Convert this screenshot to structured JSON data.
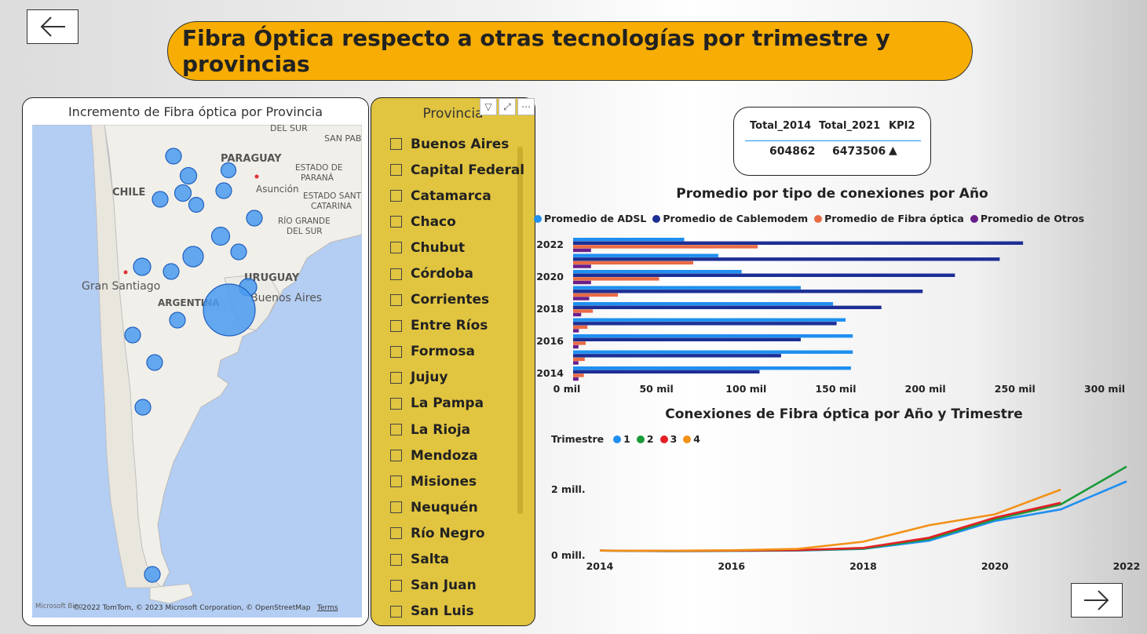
{
  "page": {
    "title": "Fibra Óptica respecto a otras tecnologías por trimestre y provincias",
    "back_icon": "arrow-left-icon",
    "next_icon": "arrow-right-icon"
  },
  "map": {
    "title": "Incremento de Fibra óptica por Provincia",
    "labels": {
      "del_sur_top": "DEL SUR",
      "san_pablo": "SAN PABL",
      "paraguay": "PARAGUAY",
      "estado_de_parana_1": "ESTADO DE",
      "estado_de_parana_2": "PARANÁ",
      "chile": "CHILE",
      "asuncion": "Asunción",
      "estado_santa_catarina_1": "ESTADO SANT",
      "estado_santa_catarina_2": "CATARINA",
      "rio_grande_1": "RÍO GRANDE",
      "rio_grande_2": "DEL SUR",
      "uruguay": "URUGUAY",
      "gran_santiago": "Gran Santiago",
      "buenos_aires": "Buenos Aires",
      "argentina": "ARGENTINA"
    },
    "attribution": "© 2022 TomTom, © 2023 Microsoft Corporation, © OpenStreetMap",
    "terms": "Terms",
    "logo": "Microsoft Bing",
    "bubble_color": "#4a9bf0"
  },
  "slicer": {
    "title": "Provincia",
    "filter_icon": "filter-icon",
    "focus_icon": "focus-mode-icon",
    "more_icon": "more-options-icon",
    "items": [
      "Buenos Aires",
      "Capital Federal",
      "Catamarca",
      "Chaco",
      "Chubut",
      "Córdoba",
      "Corrientes",
      "Entre Ríos",
      "Formosa",
      "Jujuy",
      "La Pampa",
      "La Rioja",
      "Mendoza",
      "Misiones",
      "Neuquén",
      "Río Negro",
      "Salta",
      "San Juan",
      "San Luis"
    ]
  },
  "kpi": {
    "headers": [
      "Total_2014",
      "Total_2021",
      "KPI2"
    ],
    "values": [
      "604862",
      "6473506",
      "▲"
    ]
  },
  "chart_data": [
    {
      "type": "bar",
      "orientation": "horizontal",
      "title": "Promedio por tipo de conexiones por Año",
      "legend_position": "top",
      "categories": [
        "2014",
        "2015",
        "2016",
        "2017",
        "2018",
        "2019",
        "2020",
        "2021",
        "2022"
      ],
      "tick_labels_y": [
        "2014",
        "2016",
        "2018",
        "2020",
        "2022"
      ],
      "tick_labels_x": [
        "0 mil",
        "50 mil",
        "100 mil",
        "150 mil",
        "200 mil",
        "250 mil",
        "300 mil"
      ],
      "xlim": [
        0,
        300000
      ],
      "series": [
        {
          "name": "Promedio de ADSL",
          "color": "#1f8ff0",
          "values": [
            155000,
            156000,
            156000,
            152000,
            145000,
            127000,
            94000,
            81000,
            62000
          ]
        },
        {
          "name": "Promedio de Cablemodem",
          "color": "#1c2f94",
          "values": [
            104000,
            116000,
            127000,
            147000,
            172000,
            195000,
            213000,
            238000,
            251000
          ]
        },
        {
          "name": "Promedio de Fibra óptica",
          "color": "#e86b46",
          "values": [
            6000,
            6500,
            7000,
            8000,
            11000,
            25000,
            48000,
            67000,
            103000
          ]
        },
        {
          "name": "Promedio de Otros",
          "color": "#6a1f8a",
          "values": [
            3000,
            3000,
            3000,
            3200,
            4500,
            9000,
            10000,
            10000,
            10000
          ]
        }
      ]
    },
    {
      "type": "line",
      "title": "Conexiones de Fibra óptica por Año y Trimestre",
      "legend_title": "Trimestre",
      "legend_position": "top-left",
      "x": [
        2014,
        2015,
        2016,
        2017,
        2018,
        2019,
        2020,
        2021,
        2022
      ],
      "tick_labels_x": [
        "2014",
        "2016",
        "2018",
        "2020",
        "2022"
      ],
      "tick_labels_y": [
        "0 mill.",
        "2 mill."
      ],
      "ylim": [
        0,
        3000000
      ],
      "series": [
        {
          "name": "1",
          "color": "#1f8ff0",
          "values": [
            150000,
            130000,
            140000,
            150000,
            200000,
            450000,
            1050000,
            1400000,
            2250000
          ]
        },
        {
          "name": "2",
          "color": "#1a9a38",
          "values": [
            150000,
            135000,
            145000,
            160000,
            210000,
            500000,
            1100000,
            1550000,
            2700000
          ]
        },
        {
          "name": "3",
          "color": "#e41f26",
          "values": [
            150000,
            140000,
            150000,
            165000,
            230000,
            540000,
            1150000,
            1600000,
            null
          ]
        },
        {
          "name": "4",
          "color": "#f29118",
          "values": [
            150000,
            145000,
            160000,
            200000,
            420000,
            920000,
            1250000,
            2000000,
            null
          ]
        }
      ]
    }
  ]
}
